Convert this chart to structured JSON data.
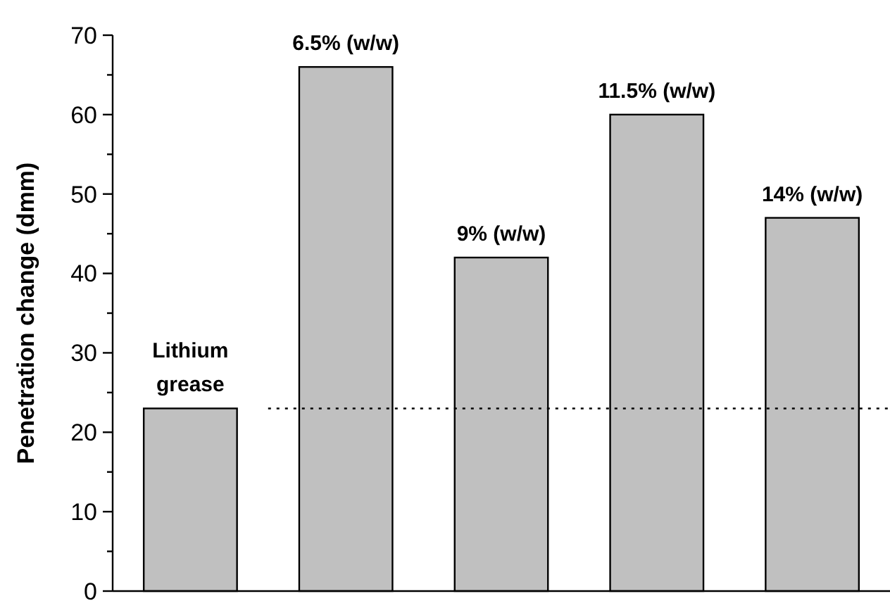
{
  "chart_data": {
    "type": "bar",
    "ylabel": "Penetration change (dmm)",
    "categories": [
      "Lithium\ngrease",
      "6.5% (w/w)",
      "9% (w/w)",
      "11.5% (w/w)",
      "14% (w/w)"
    ],
    "values": [
      23,
      66,
      42,
      60,
      47
    ],
    "color": "#c0c0c0",
    "ylim": [
      0,
      70
    ],
    "yticks": [
      0,
      {
        "value": 5,
        "label": null
      },
      10,
      {
        "value": 15,
        "label": null
      },
      20,
      {
        "value": 25,
        "label": null
      },
      30,
      {
        "value": 35,
        "label": null
      },
      40,
      {
        "value": 45,
        "label": null
      },
      50,
      {
        "value": 55,
        "label": null
      },
      60,
      {
        "value": 65,
        "label": null
      },
      70
    ],
    "ref_lines": [
      {
        "axis": "y",
        "value": 23,
        "line_style": "dotted",
        "color": "#000000"
      }
    ],
    "grid": false
  }
}
